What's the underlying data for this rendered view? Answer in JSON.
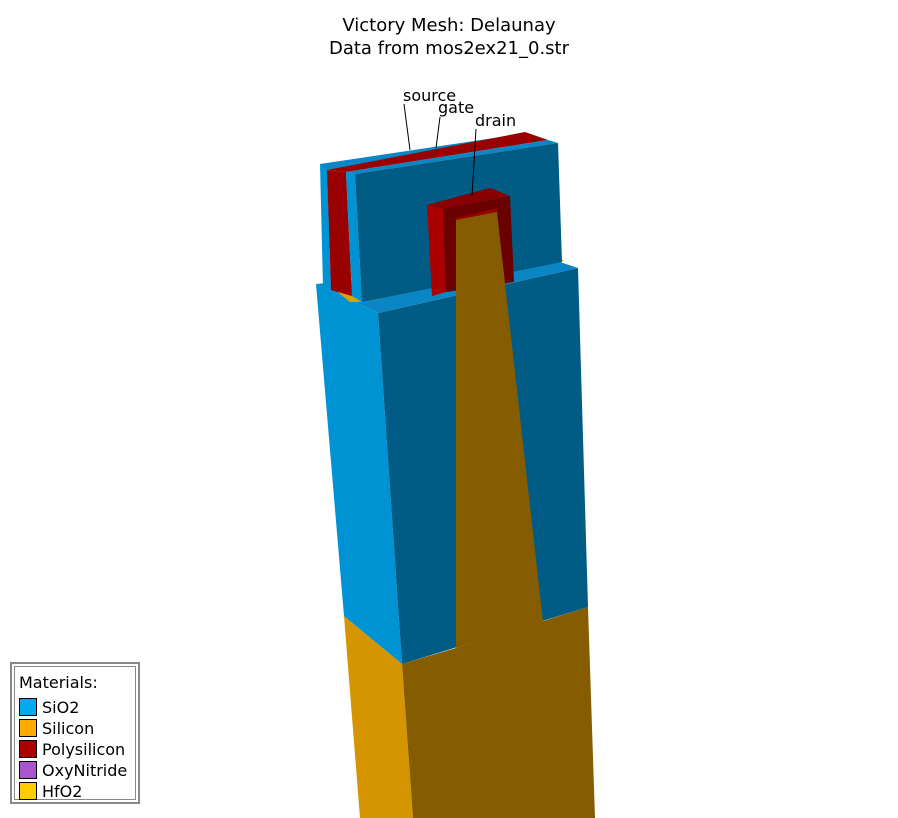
{
  "title": {
    "line1": "Victory Mesh: Delaunay",
    "line2": "Data from mos2ex21_0.str"
  },
  "electrodes": {
    "source": "source",
    "gate": "gate",
    "drain": "drain"
  },
  "legend": {
    "title": "Materials:",
    "items": [
      {
        "label": "SiO2",
        "color": "#00aaee"
      },
      {
        "label": "Silicon",
        "color": "#ffaa00"
      },
      {
        "label": "Polysilicon",
        "color": "#aa0000"
      },
      {
        "label": "OxyNitride",
        "color": "#aa55cc"
      },
      {
        "label": "HfO2",
        "color": "#ffcc00"
      }
    ]
  },
  "colors": {
    "sio2_front": "#0093d3",
    "sio2_side": "#005c85",
    "sio2_top": "#0a86c4",
    "silicon_front": "#d49500",
    "silicon_side": "#855c00",
    "poly_front": "#990000",
    "poly_dark": "#6a0000",
    "hfo2": "#e0a000"
  }
}
